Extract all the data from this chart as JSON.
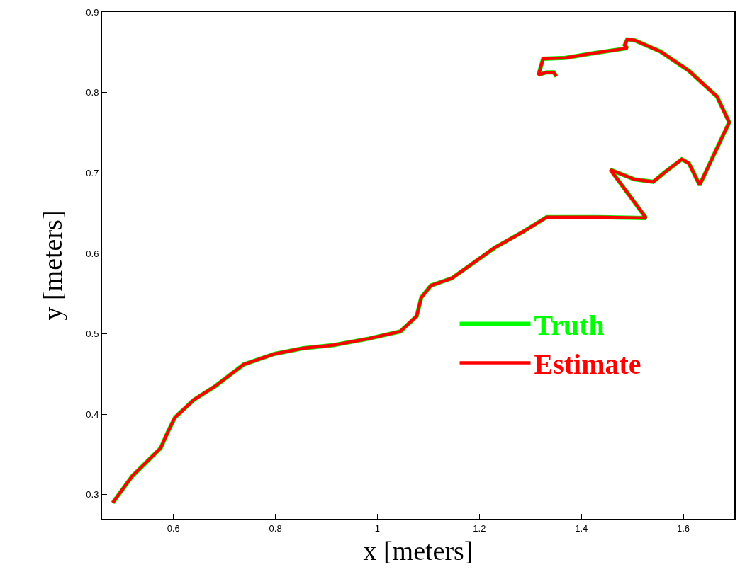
{
  "chart_data": {
    "type": "line",
    "xlabel": "x [meters]",
    "ylabel": "y [meters]",
    "xlim": [
      0.46,
      1.7
    ],
    "ylim": [
      0.27,
      0.9
    ],
    "xticks": [
      0.6,
      0.8,
      {
        "value": 1,
        "label": "1"
      },
      1.2,
      1.4,
      1.6
    ],
    "yticks": [
      0.3,
      0.4,
      0.5,
      0.6,
      0.7,
      0.8,
      0.9
    ],
    "grid": false,
    "legend": "right",
    "line_style": "solid",
    "marker": "none",
    "x": [
      0.481,
      0.519,
      0.575,
      0.589,
      0.603,
      0.64,
      0.682,
      0.738,
      0.798,
      0.854,
      0.914,
      0.983,
      1.045,
      1.077,
      1.086,
      1.105,
      1.146,
      1.23,
      1.286,
      1.332,
      1.434,
      1.527,
      1.457,
      1.504,
      1.541,
      1.564,
      1.597,
      1.611,
      1.632,
      1.69,
      1.666,
      1.611,
      1.555,
      1.504,
      1.49,
      1.485,
      1.49,
      1.425,
      1.369,
      1.325,
      1.316,
      1.332,
      1.346,
      1.351
    ],
    "series": [
      {
        "name": "Truth",
        "color": "#00ff00",
        "values": [
          0.29,
          0.323,
          0.358,
          0.378,
          0.396,
          0.418,
          0.435,
          0.462,
          0.475,
          0.482,
          0.486,
          0.494,
          0.503,
          0.522,
          0.545,
          0.56,
          0.569,
          0.607,
          0.627,
          0.645,
          0.645,
          0.644,
          0.704,
          0.692,
          0.689,
          0.701,
          0.717,
          0.712,
          0.685,
          0.763,
          0.795,
          0.827,
          0.851,
          0.865,
          0.866,
          0.859,
          0.855,
          0.849,
          0.843,
          0.842,
          0.822,
          0.825,
          0.825,
          0.82
        ]
      },
      {
        "name": "Estimate",
        "color": "#ff0000",
        "values": [
          0.29,
          0.323,
          0.358,
          0.378,
          0.396,
          0.418,
          0.435,
          0.462,
          0.475,
          0.482,
          0.486,
          0.494,
          0.503,
          0.522,
          0.545,
          0.56,
          0.569,
          0.607,
          0.627,
          0.645,
          0.645,
          0.644,
          0.704,
          0.692,
          0.689,
          0.701,
          0.717,
          0.712,
          0.685,
          0.763,
          0.795,
          0.827,
          0.851,
          0.865,
          0.866,
          0.859,
          0.855,
          0.849,
          0.843,
          0.842,
          0.822,
          0.825,
          0.825,
          0.82
        ]
      }
    ]
  }
}
